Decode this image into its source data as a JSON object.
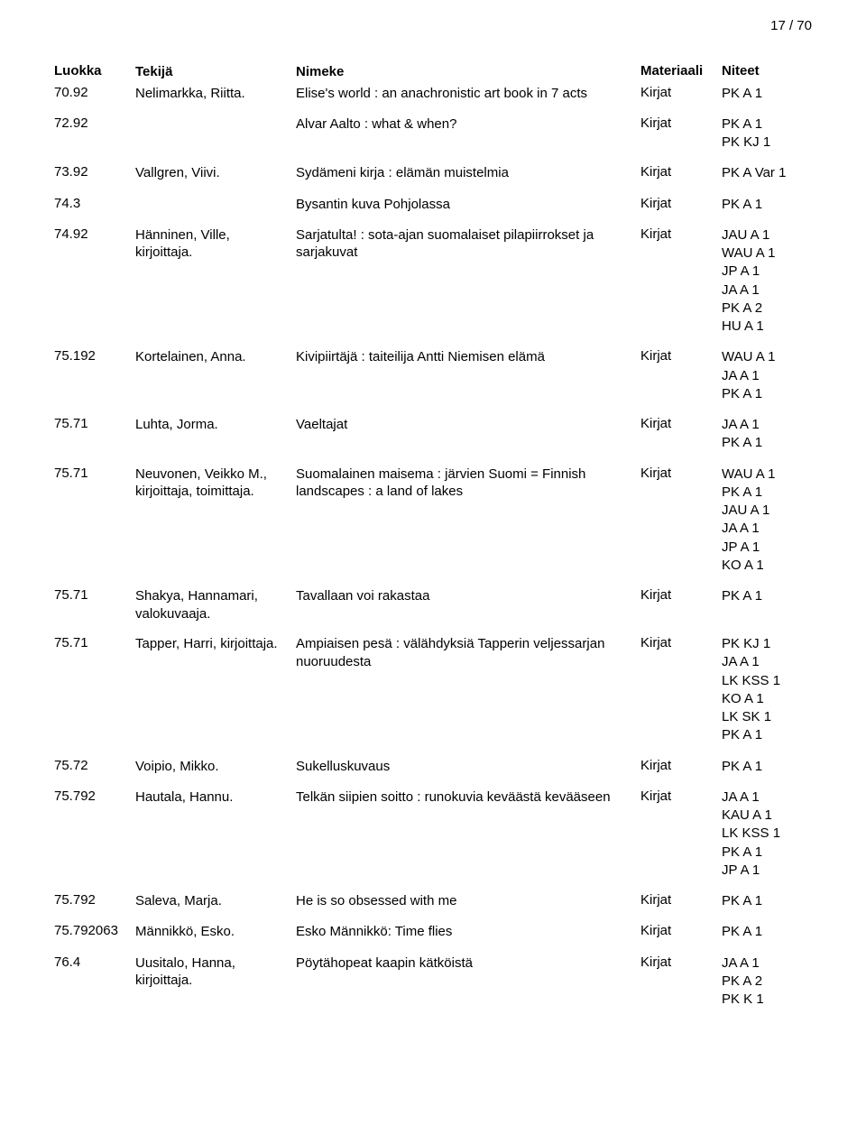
{
  "page_number": "17 / 70",
  "headers": {
    "luokka": "Luokka",
    "tekija": "Tekijä",
    "nimeke": "Nimeke",
    "materiaali": "Materiaali",
    "niteet": "Niteet"
  },
  "rows": [
    {
      "luokka": "70.92",
      "tekija": "Nelimarkka, Riitta.",
      "nimeke": "Elise's world : an anachronistic art book in 7 acts",
      "materiaali": "Kirjat",
      "niteet": [
        "PK A 1"
      ]
    },
    {
      "luokka": "72.92",
      "tekija": "",
      "nimeke": "Alvar Aalto : what & when?",
      "materiaali": "Kirjat",
      "niteet": [
        "PK A 1",
        "PK KJ 1"
      ]
    },
    {
      "luokka": "73.92",
      "tekija": "Vallgren, Viivi.",
      "nimeke": "Sydämeni kirja : elämän muistelmia",
      "materiaali": "Kirjat",
      "niteet": [
        "PK A Var 1"
      ]
    },
    {
      "luokka": "74.3",
      "tekija": "",
      "nimeke": "Bysantin kuva Pohjolassa",
      "materiaali": "Kirjat",
      "niteet": [
        "PK A 1"
      ]
    },
    {
      "luokka": "74.92",
      "tekija": "Hänninen, Ville, kirjoittaja.",
      "nimeke": "Sarjatulta! : sota-ajan suomalaiset pilapiirrokset ja sarjakuvat",
      "materiaali": "Kirjat",
      "niteet": [
        "JAU A 1",
        "WAU A 1",
        "JP A 1",
        "JA A 1",
        "PK A 2",
        "HU A 1"
      ]
    },
    {
      "luokka": "75.192",
      "tekija": "Kortelainen, Anna.",
      "nimeke": "Kivipiirtäjä : taiteilija Antti Niemisen elämä",
      "materiaali": "Kirjat",
      "niteet": [
        "WAU A 1",
        "JA A 1",
        "PK A 1"
      ]
    },
    {
      "luokka": "75.71",
      "tekija": "Luhta, Jorma.",
      "nimeke": "Vaeltajat",
      "materiaali": "Kirjat",
      "niteet": [
        "JA A 1",
        "PK A 1"
      ]
    },
    {
      "luokka": "75.71",
      "tekija": "Neuvonen, Veikko M., kirjoittaja, toimittaja.",
      "nimeke": "Suomalainen maisema : järvien Suomi = Finnish landscapes : a land of lakes",
      "materiaali": "Kirjat",
      "niteet": [
        "WAU A 1",
        "PK A 1",
        "JAU A 1",
        "JA A 1",
        "JP A 1",
        "KO A 1"
      ]
    },
    {
      "luokka": "75.71",
      "tekija": "Shakya, Hannamari, valokuvaaja.",
      "nimeke": "Tavallaan voi rakastaa",
      "materiaali": "Kirjat",
      "niteet": [
        "PK A 1"
      ]
    },
    {
      "luokka": "75.71",
      "tekija": "Tapper, Harri, kirjoittaja.",
      "nimeke": "Ampiaisen pesä : välähdyksiä Tapperin veljessarjan nuoruudesta",
      "materiaali": "Kirjat",
      "niteet": [
        "PK KJ 1",
        "JA A 1",
        "LK KSS 1",
        "KO A 1",
        "LK SK 1",
        "PK A 1"
      ]
    },
    {
      "luokka": "75.72",
      "tekija": "Voipio, Mikko.",
      "nimeke": "Sukelluskuvaus",
      "materiaali": "Kirjat",
      "niteet": [
        "PK A 1"
      ]
    },
    {
      "luokka": "75.792",
      "tekija": "Hautala, Hannu.",
      "nimeke": "Telkän siipien soitto : runokuvia keväästä kevääseen",
      "materiaali": "Kirjat",
      "niteet": [
        "JA A 1",
        "KAU A 1",
        "LK KSS 1",
        "PK A 1",
        "JP A 1"
      ]
    },
    {
      "luokka": "75.792",
      "tekija": "Saleva, Marja.",
      "nimeke": "He is so obsessed with me",
      "materiaali": "Kirjat",
      "niteet": [
        "PK A 1"
      ]
    },
    {
      "luokka": "75.792063",
      "tekija": "Männikkö, Esko.",
      "nimeke": "Esko Männikkö: Time flies",
      "materiaali": "Kirjat",
      "niteet": [
        "PK A 1"
      ]
    },
    {
      "luokka": "76.4",
      "tekija": "Uusitalo, Hanna, kirjoittaja.",
      "nimeke": "Pöytähopeat kaapin kätköistä",
      "materiaali": "Kirjat",
      "niteet": [
        "JA A 1",
        "PK A 2",
        "PK K 1"
      ]
    }
  ],
  "style": {
    "background_color": "#ffffff",
    "text_color": "#000000",
    "font_family": "Arial, Helvetica, sans-serif",
    "header_fontsize": 15,
    "body_fontsize": 15,
    "column_widths": {
      "luokka": 90,
      "tekija": 170,
      "materiaali": 90,
      "niteet": 100
    }
  }
}
